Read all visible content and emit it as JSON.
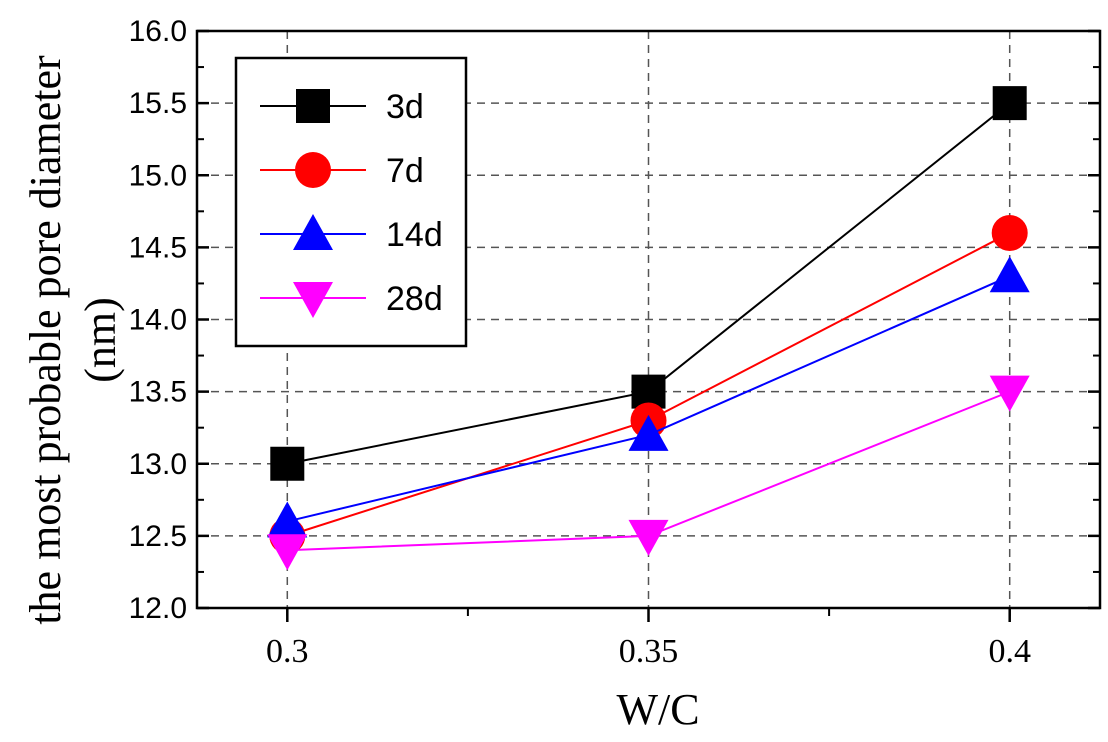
{
  "chart_data": {
    "type": "line",
    "title": "",
    "x": [
      0.3,
      0.35,
      0.4
    ],
    "x_tick_labels": [
      "0.3",
      "0.35",
      "0.4"
    ],
    "xlabel": "W/C",
    "ylabel_line1": "the most probable pore diameter",
    "ylabel_line2": "(nm)",
    "xlim": [
      0.2875,
      0.4125
    ],
    "ylim": [
      12.0,
      16.0
    ],
    "y_ticks": [
      12.0,
      12.5,
      13.0,
      13.5,
      14.0,
      14.5,
      15.0,
      15.5,
      16.0
    ],
    "y_tick_labels": [
      "12.0",
      "12.5",
      "13.0",
      "13.5",
      "14.0",
      "14.5",
      "15.0",
      "15.5",
      "16.0"
    ],
    "grid": true,
    "legend_position": "top-left",
    "series": [
      {
        "name": "3d",
        "values": [
          13.0,
          13.5,
          15.5
        ],
        "color": "#000000",
        "marker": "square"
      },
      {
        "name": "7d",
        "values": [
          12.5,
          13.3,
          14.6
        ],
        "color": "#ff0000",
        "marker": "circle"
      },
      {
        "name": "14d",
        "values": [
          12.6,
          13.2,
          14.3
        ],
        "color": "#0000ff",
        "marker": "triangle-up"
      },
      {
        "name": "28d",
        "values": [
          12.4,
          12.5,
          13.5
        ],
        "color": "#ff00ff",
        "marker": "triangle-down"
      }
    ]
  }
}
